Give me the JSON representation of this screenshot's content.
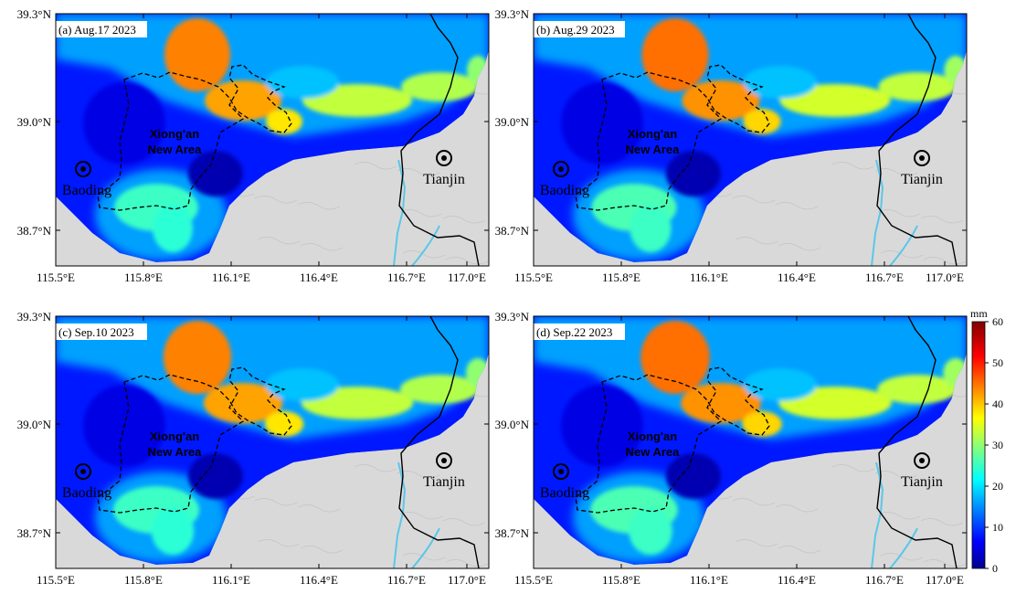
{
  "figure": {
    "panels": [
      {
        "label": "(a) Aug.17 2023",
        "variant": 0
      },
      {
        "label": "(b) Aug.29 2023",
        "variant": 1
      },
      {
        "label": "(c) Sep.10 2023",
        "variant": 2
      },
      {
        "label": "(d) Sep.22 2023",
        "variant": 3
      }
    ],
    "lat_ticks": [
      "39.3°N",
      "39.0°N",
      "38.7°N"
    ],
    "lon_ticks": [
      "115.5°E",
      "115.8°E",
      "116.1°E",
      "116.4°E",
      "116.7°E",
      "117.0°E"
    ],
    "places": {
      "xiongan_line1": "Xiong'an",
      "xiongan_line2": "New Area",
      "baoding": "Baoding",
      "tianjin": "Tianjin"
    },
    "colorbar": {
      "unit": "mm",
      "min": 0,
      "max": 60,
      "ticks": [
        "0",
        "10",
        "20",
        "30",
        "40",
        "50",
        "60"
      ]
    },
    "colors": {
      "background": "#d9d9d9",
      "river": "#5bc7e8",
      "boundary": "#000000"
    }
  }
}
